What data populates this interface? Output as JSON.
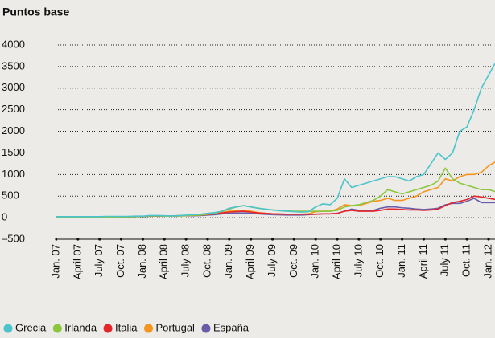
{
  "chart_data": {
    "type": "line",
    "title": "Puntos base",
    "categories": [
      "Jan. 07",
      null,
      null,
      "April 07",
      null,
      null,
      "July 07",
      null,
      null,
      "Oct. 07",
      null,
      null,
      "Jan. 08",
      null,
      null,
      "April 08",
      null,
      null,
      "July 08",
      null,
      null,
      "Oct. 08",
      null,
      null,
      "Jan. 09",
      null,
      null,
      "April 09",
      null,
      null,
      "July 09",
      null,
      null,
      "Oct. 09",
      null,
      null,
      "Jan. 10",
      null,
      null,
      "April 10",
      null,
      null,
      "July 10",
      null,
      null,
      "Oct. 10",
      null,
      null,
      "Jan. 11",
      null,
      null,
      "April 11",
      null,
      null,
      "July 11",
      null,
      null,
      "Oct. 11",
      null,
      null,
      "Jan. 12",
      null
    ],
    "series": [
      {
        "name": "Grecia",
        "color": "#4cc4cb",
        "values": [
          25,
          25,
          25,
          25,
          25,
          25,
          25,
          30,
          30,
          30,
          30,
          35,
          35,
          50,
          50,
          45,
          40,
          50,
          60,
          70,
          80,
          100,
          120,
          150,
          220,
          250,
          280,
          250,
          220,
          200,
          180,
          160,
          150,
          140,
          130,
          140,
          250,
          320,
          300,
          450,
          900,
          700,
          750,
          800,
          850,
          900,
          950,
          950,
          900,
          850,
          950,
          1000,
          1250,
          1500,
          1350,
          1500,
          2000,
          2100,
          2500,
          3000,
          3300,
          3600
        ]
      },
      {
        "name": "Irlanda",
        "color": "#8cc63f",
        "values": [
          10,
          10,
          10,
          10,
          10,
          10,
          15,
          15,
          15,
          20,
          20,
          25,
          30,
          40,
          40,
          35,
          35,
          40,
          50,
          55,
          60,
          80,
          100,
          150,
          200,
          250,
          280,
          250,
          220,
          200,
          180,
          170,
          160,
          150,
          150,
          150,
          150,
          150,
          150,
          170,
          250,
          280,
          300,
          350,
          400,
          500,
          650,
          600,
          550,
          600,
          650,
          700,
          750,
          850,
          1150,
          900,
          800,
          750,
          700,
          650,
          650,
          600
        ]
      },
      {
        "name": "Italia",
        "color": "#e3262c",
        "values": [
          15,
          15,
          15,
          15,
          15,
          15,
          20,
          20,
          20,
          25,
          25,
          30,
          30,
          40,
          40,
          40,
          40,
          45,
          50,
          55,
          60,
          70,
          90,
          110,
          130,
          140,
          150,
          130,
          110,
          100,
          90,
          85,
          80,
          80,
          80,
          80,
          80,
          90,
          90,
          100,
          150,
          170,
          150,
          150,
          150,
          170,
          200,
          200,
          190,
          180,
          180,
          170,
          180,
          200,
          280,
          350,
          380,
          420,
          500,
          480,
          450,
          420
        ]
      },
      {
        "name": "Portugal",
        "color": "#f7941d",
        "values": [
          15,
          15,
          15,
          15,
          15,
          15,
          20,
          20,
          20,
          25,
          25,
          30,
          30,
          40,
          40,
          40,
          40,
          45,
          50,
          55,
          60,
          80,
          100,
          130,
          150,
          160,
          170,
          150,
          120,
          100,
          90,
          85,
          80,
          80,
          80,
          90,
          140,
          150,
          150,
          200,
          300,
          280,
          280,
          330,
          380,
          400,
          450,
          400,
          400,
          450,
          500,
          600,
          650,
          700,
          900,
          850,
          950,
          1000,
          1000,
          1050,
          1200,
          1300
        ]
      },
      {
        "name": "España",
        "color": "#6a5ca8",
        "values": [
          10,
          10,
          10,
          10,
          10,
          10,
          15,
          15,
          15,
          20,
          20,
          25,
          25,
          35,
          35,
          35,
          35,
          40,
          45,
          45,
          50,
          60,
          70,
          90,
          100,
          105,
          110,
          100,
          90,
          80,
          70,
          65,
          60,
          60,
          60,
          70,
          80,
          90,
          90,
          100,
          150,
          200,
          170,
          160,
          170,
          220,
          250,
          250,
          230,
          220,
          200,
          190,
          200,
          220,
          300,
          330,
          330,
          380,
          450,
          350,
          350,
          350
        ]
      }
    ],
    "ylim": [
      -500,
      4000
    ],
    "yticks": [
      {
        "value": -500,
        "label": "–500"
      },
      0,
      500,
      1000,
      1500,
      2000,
      2500,
      3000,
      3500,
      4000
    ],
    "grid": true,
    "legend": "bottom"
  }
}
